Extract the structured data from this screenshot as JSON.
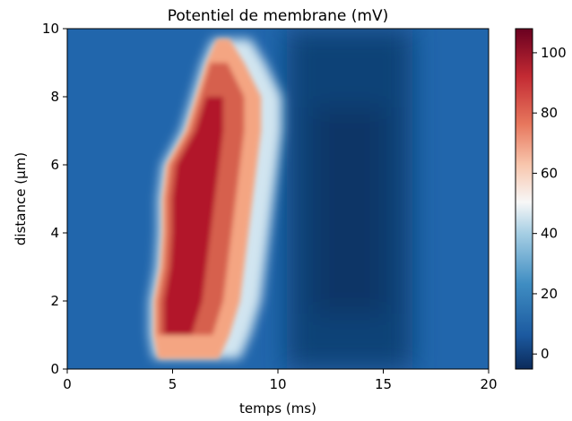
{
  "chart_data": {
    "type": "heatmap",
    "title": "Potentiel de membrane (mV)",
    "xlabel": "temps (ms)",
    "ylabel": "distance (μm)",
    "xlim": [
      0,
      20
    ],
    "ylim": [
      0,
      10
    ],
    "x_ticks": [
      "0",
      "5",
      "10",
      "15",
      "20"
    ],
    "y_ticks": [
      "0",
      "2",
      "4",
      "6",
      "8",
      "10"
    ],
    "colorbar": {
      "colormap": "RdBu_r",
      "range": [
        -5,
        108
      ],
      "ticks": [
        "0",
        "20",
        "40",
        "60",
        "80",
        "100"
      ]
    },
    "depolarized_region": {
      "value_peak_mV": 105,
      "resting_value_mV": 8,
      "after_hyperpolarization_mV": -3,
      "onset_by_distance": [
        {
          "distance": 0.3,
          "start_ms": 4.2,
          "end_ms": 8.0
        },
        {
          "distance": 1.0,
          "start_ms": 4.0,
          "end_ms": 8.5
        },
        {
          "distance": 2.0,
          "start_ms": 4.0,
          "end_ms": 9.0
        },
        {
          "distance": 3.0,
          "start_ms": 4.3,
          "end_ms": 9.2
        },
        {
          "distance": 4.0,
          "start_ms": 4.4,
          "end_ms": 9.4
        },
        {
          "distance": 5.0,
          "start_ms": 4.4,
          "end_ms": 9.6
        },
        {
          "distance": 6.0,
          "start_ms": 4.6,
          "end_ms": 9.8
        },
        {
          "distance": 7.0,
          "start_ms": 5.5,
          "end_ms": 10.0
        },
        {
          "distance": 8.0,
          "start_ms": 6.0,
          "end_ms": 10.0
        },
        {
          "distance": 9.0,
          "start_ms": 6.5,
          "end_ms": 9.2
        },
        {
          "distance": 9.7,
          "start_ms": 7.0,
          "end_ms": 8.5
        }
      ]
    }
  }
}
